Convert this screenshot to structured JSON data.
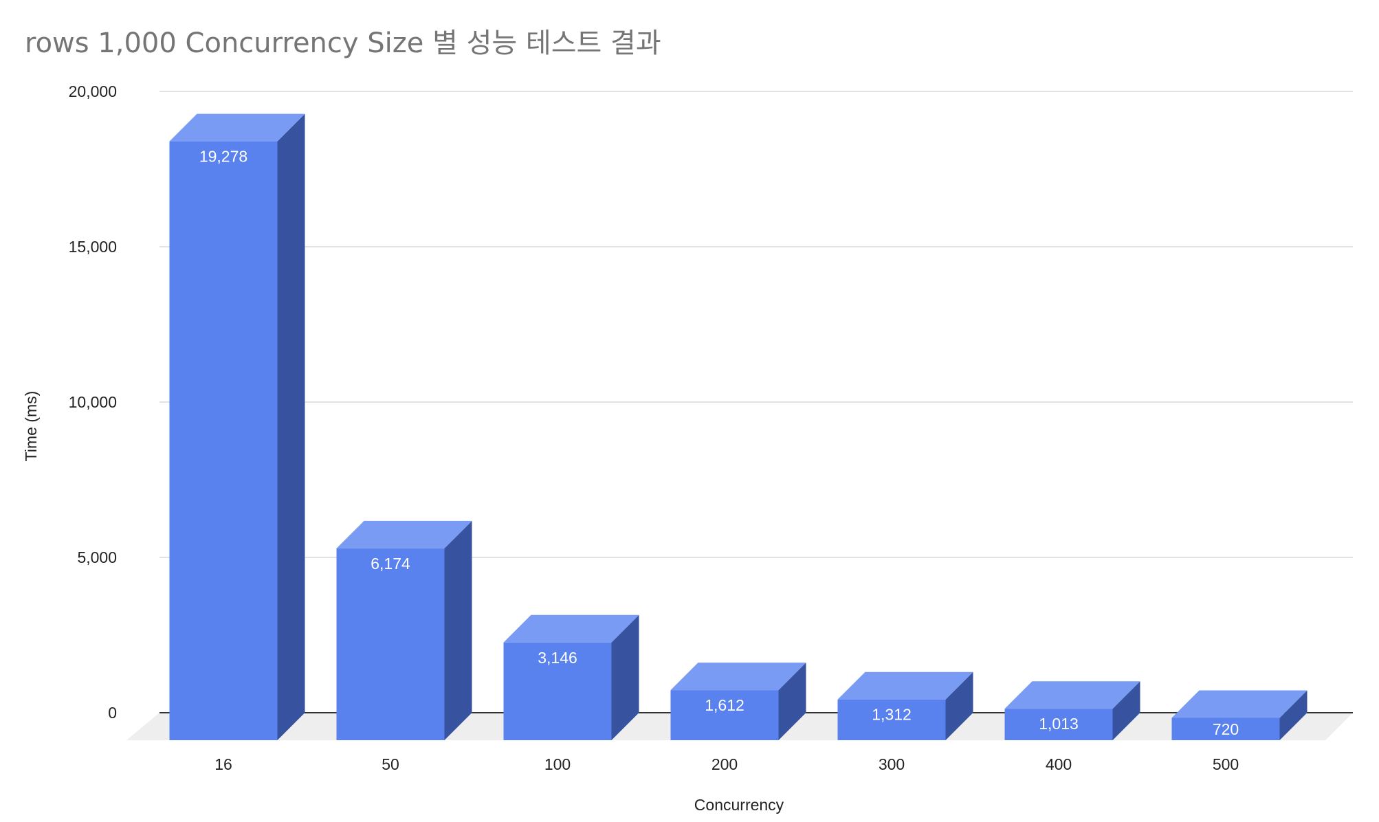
{
  "chart_data": {
    "type": "bar",
    "three_d": true,
    "title": "rows 1,000 Concurrency Size 별 성능 테스트 결과",
    "xlabel": "Concurrency",
    "ylabel": "Time (ms)",
    "categories": [
      "16",
      "50",
      "100",
      "200",
      "300",
      "400",
      "500"
    ],
    "values": [
      19278,
      6174,
      3146,
      1612,
      1312,
      1013,
      720
    ],
    "data_labels": [
      "19,278",
      "6,174",
      "3,146",
      "1,612",
      "1,312",
      "1,013",
      "720"
    ],
    "ylim": [
      0,
      20000
    ],
    "yticks": [
      0,
      5000,
      10000,
      15000,
      20000
    ],
    "ytick_labels": [
      "0",
      "5,000",
      "10,000",
      "15,000",
      "20,000"
    ],
    "grid": true,
    "legend": "none",
    "colors": {
      "bar_front": "#5982EE",
      "bar_top": "#7A9BF3",
      "bar_side": "#3753A0",
      "floor": "#EEEEEE",
      "gridline": "#D9D9D9",
      "baseline": "#333333",
      "title": "#757575"
    }
  }
}
